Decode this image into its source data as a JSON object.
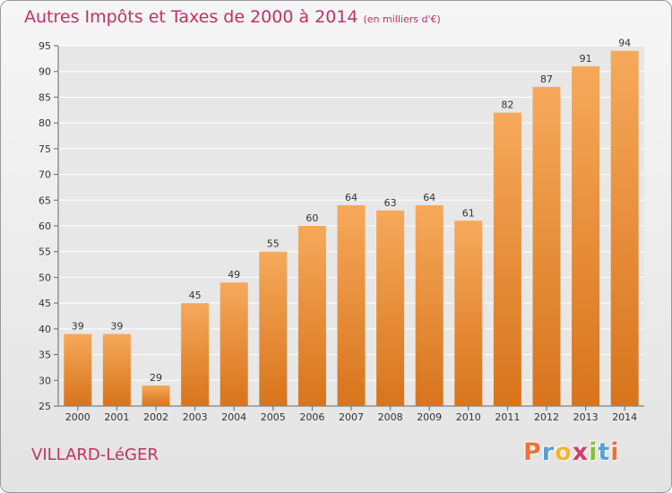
{
  "title": "Autres Impôts et Taxes de 2000 à 2014",
  "title_unit": "(en milliers d'€)",
  "commune": "VILLARD-LéGER",
  "brand": {
    "letters": [
      "P",
      "r",
      "o",
      "x",
      "i",
      "t",
      "i"
    ],
    "colors": [
      "#e8743b",
      "#5a9fd4",
      "#f2b632",
      "#d63b6b",
      "#8bbf3d",
      "#5a9fd4",
      "#e8743b"
    ]
  },
  "colors": {
    "title": "#c0325f",
    "bar_light": "#f6a95a",
    "bar_dark": "#d8741c",
    "grid": "#ffffff"
  },
  "chart_data": {
    "type": "bar",
    "categories": [
      "2000",
      "2001",
      "2002",
      "2003",
      "2004",
      "2005",
      "2006",
      "2007",
      "2008",
      "2009",
      "2010",
      "2011",
      "2012",
      "2013",
      "2014"
    ],
    "values": [
      39,
      39,
      29,
      45,
      49,
      55,
      60,
      64,
      63,
      64,
      61,
      82,
      87,
      91,
      94
    ],
    "ylim": [
      25,
      95
    ],
    "yticks": [
      25,
      30,
      35,
      40,
      45,
      50,
      55,
      60,
      65,
      70,
      75,
      80,
      85,
      90,
      95
    ],
    "grid": true,
    "data_labels": true
  }
}
